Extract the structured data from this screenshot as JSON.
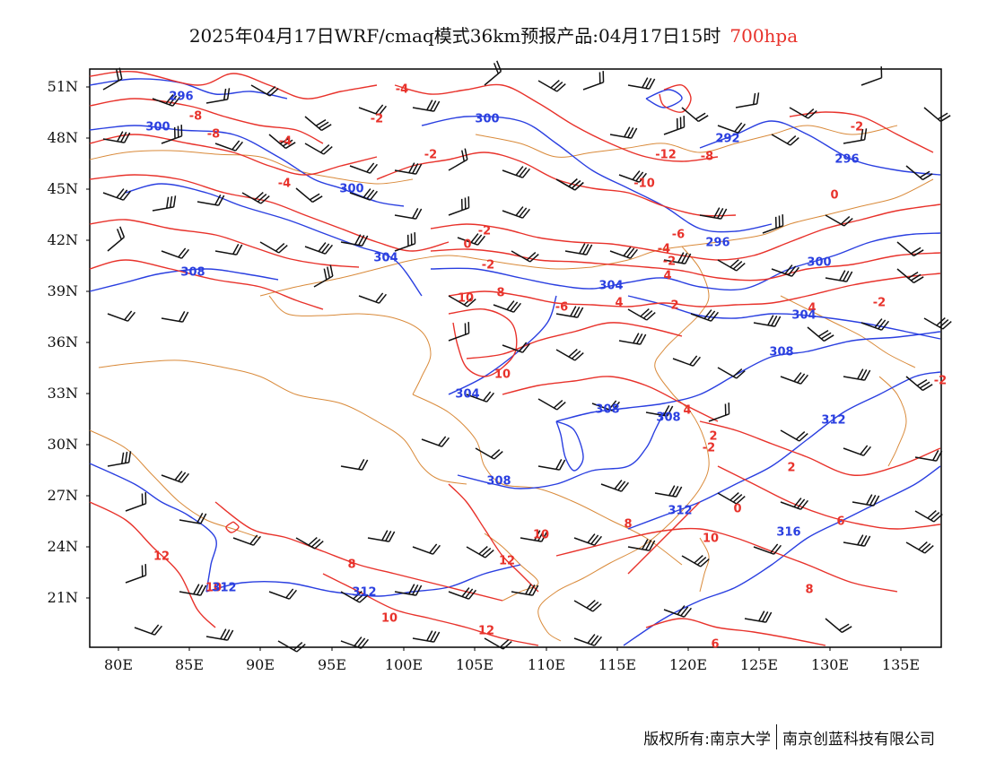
{
  "title": {
    "main": "2025年04月17日WRF/cmaq模式36km预报产品:04月17日15时",
    "level": "700hpa"
  },
  "axes": {
    "lat_labels": [
      "51N",
      "48N",
      "45N",
      "42N",
      "39N",
      "36N",
      "33N",
      "30N",
      "27N",
      "24N",
      "21N"
    ],
    "lon_labels": [
      "80E",
      "85E",
      "90E",
      "95E",
      "100E",
      "105E",
      "110E",
      "115E",
      "120E",
      "125E",
      "130E",
      "135E"
    ]
  },
  "colors": {
    "temperature_contour": "#e8322b",
    "height_contour": "#2a3fe0",
    "border": "#d98a3a",
    "wind_barb": "#111111"
  },
  "temperature_labels": [
    "-4",
    "-8",
    "-8",
    "-4",
    "-4",
    "-2",
    "-2",
    "-12",
    "-8",
    "-10",
    "-2",
    "0",
    "-2",
    "-2",
    "-6",
    "-4",
    "-2",
    "0",
    "4",
    "10",
    "8",
    "-6",
    "4",
    "2",
    "-2",
    "4",
    "2",
    "10",
    "4",
    "-2",
    "2",
    "-2",
    "8",
    "6",
    "12",
    "10",
    "8",
    "10",
    "12",
    "10",
    "12",
    "8",
    "10",
    "6",
    "0"
  ],
  "height_labels": [
    "296",
    "300",
    "300",
    "300",
    "292",
    "296",
    "296",
    "308",
    "304",
    "300",
    "304",
    "304",
    "308",
    "304",
    "308",
    "308",
    "312",
    "308",
    "312",
    "312",
    "316",
    "312"
  ],
  "footer": {
    "left": "版权所有:南京大学",
    "right": "南京创蓝科技有限公司"
  }
}
